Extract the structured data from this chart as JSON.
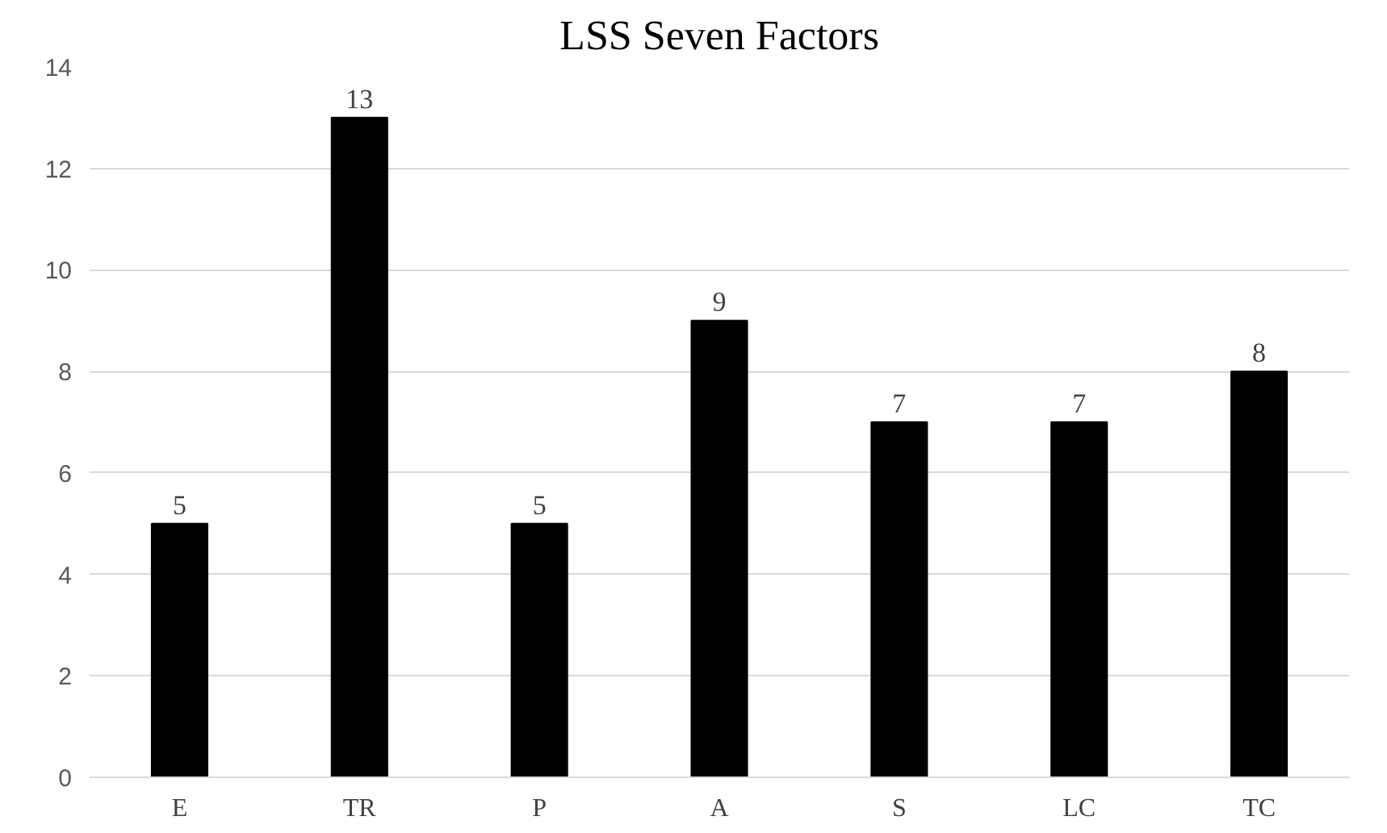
{
  "chart_data": {
    "type": "bar",
    "title": "LSS Seven Factors",
    "categories": [
      "E",
      "TR",
      "P",
      "A",
      "S",
      "LC",
      "TC"
    ],
    "values": [
      5,
      13,
      5,
      9,
      7,
      7,
      8
    ],
    "color": "#000000",
    "ylim": [
      0,
      14
    ],
    "yticks": [
      0,
      2,
      4,
      6,
      8,
      10,
      12,
      14
    ],
    "grid": "y",
    "data_labels": true
  }
}
